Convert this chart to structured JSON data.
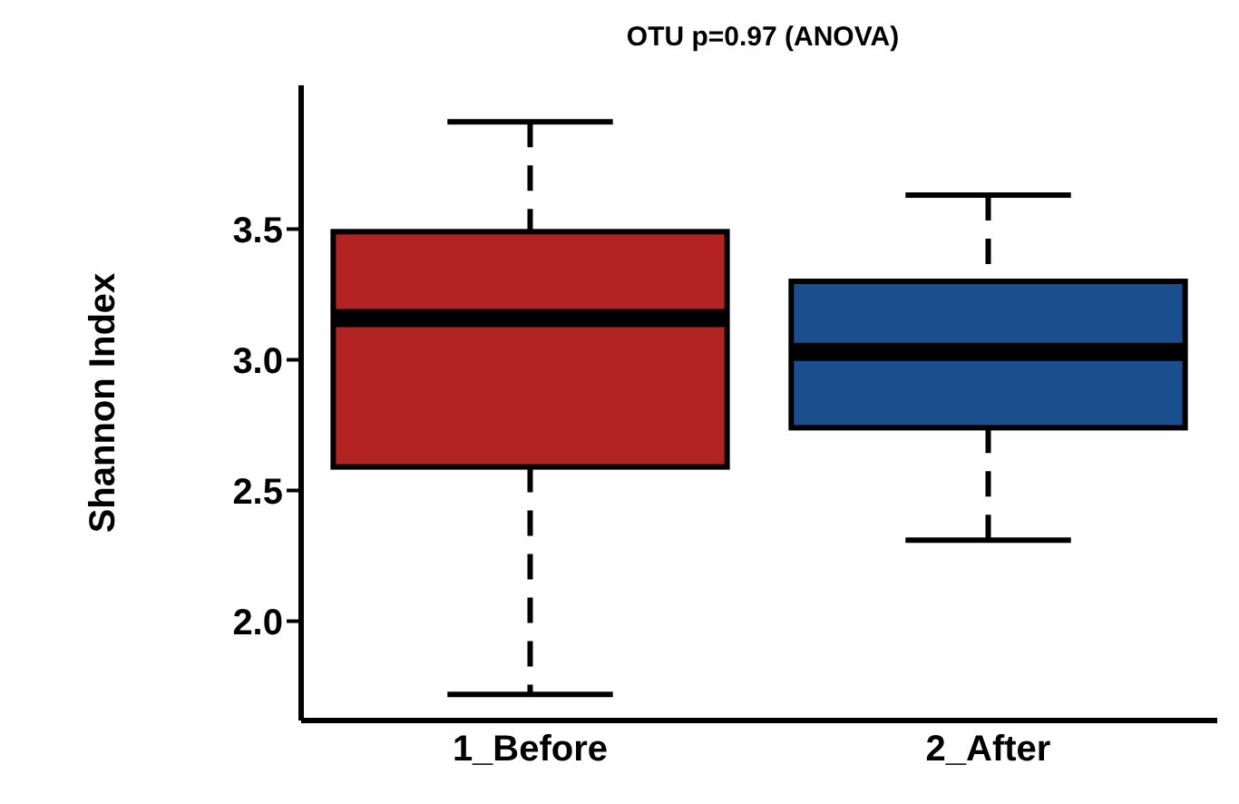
{
  "chart_data": {
    "type": "box",
    "title": "OTU p=0.97 (ANOVA)",
    "ylabel": "Shannon Index",
    "categories": [
      "1_Before",
      "2_After"
    ],
    "colors": [
      "#b22222",
      "#1a4f8f"
    ],
    "boxes": [
      {
        "low": 1.72,
        "q1": 2.59,
        "median": 3.16,
        "q3": 3.49,
        "high": 3.91
      },
      {
        "low": 2.31,
        "q1": 2.74,
        "median": 3.03,
        "q3": 3.3,
        "high": 3.63
      }
    ],
    "ylim": [
      1.62,
      4.05
    ],
    "yticks": [
      {
        "value": 2,
        "label": "2.0"
      },
      {
        "value": 2.5,
        "label": "2.5"
      },
      {
        "value": 3,
        "label": "3.0"
      },
      {
        "value": 3.5,
        "label": "3.5"
      }
    ],
    "grid": false,
    "legend": false
  }
}
